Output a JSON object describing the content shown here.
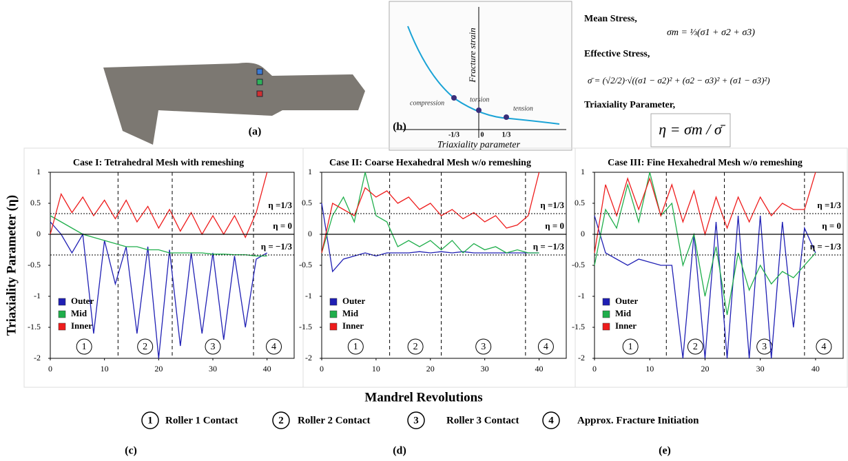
{
  "panel_labels": [
    "(a)",
    "(b)",
    "(c)",
    "(d)",
    "(e)"
  ],
  "diagram_b": {
    "y_label": "Fracture strain",
    "x_label": "Triaxiality parameter",
    "points": [
      "compression",
      "torsion",
      "tension"
    ],
    "x_marks": [
      "-1/3",
      "0",
      "1/3"
    ]
  },
  "equations": {
    "mean_label": "Mean Stress,",
    "mean_formula": "σm = ⅓(σ1 + σ2 + σ3)",
    "effective_label": "Effective Stress,",
    "effective_formula": "σ̄ = (√2/2)·√((σ1 − σ2)² + (σ2 − σ3)² + (σ1 − σ3)²)",
    "triax_label": "Triaxiality  Parameter,",
    "triax_formula": "η = σm / σ̄"
  },
  "shared_xlabel": "Mandrel Revolutions",
  "key": [
    {
      "symbol": "1",
      "label": "Roller 1 Contact"
    },
    {
      "symbol": "2",
      "label": "Roller 2 Contact"
    },
    {
      "symbol": "3",
      "label": "Roller 3 Contact"
    },
    {
      "symbol": "4",
      "label": "Approx. Fracture Initiation"
    }
  ],
  "chart_data": [
    {
      "type": "line",
      "title": "Case I: Tetrahedral  Mesh with remeshing",
      "ylabel": "Triaxiality Parameter (η)",
      "x": [
        0,
        2,
        4,
        6,
        8,
        10,
        12,
        14,
        16,
        18,
        20,
        22,
        24,
        26,
        28,
        30,
        32,
        34,
        36,
        38,
        40
      ],
      "series": [
        {
          "name": "Outer",
          "color": "#1f1fb4",
          "values": [
            0.2,
            0,
            -0.3,
            0,
            -1.6,
            -0.1,
            -0.8,
            -0.2,
            -1.6,
            -0.2,
            -2,
            -0.25,
            -1.8,
            -0.3,
            -1.6,
            -0.3,
            -1.7,
            -0.35,
            -1.5,
            -0.4,
            -0.3
          ]
        },
        {
          "name": "Mid",
          "color": "#1fae4b",
          "values": [
            0.3,
            0.2,
            0.1,
            0,
            -0.05,
            -0.1,
            -0.15,
            -0.2,
            -0.2,
            -0.25,
            -0.25,
            -0.3,
            -0.3,
            -0.3,
            -0.3,
            -0.32,
            -0.32,
            -0.33,
            -0.33,
            -0.35,
            -0.35
          ]
        },
        {
          "name": "Inner",
          "color": "#ee1c1c",
          "values": [
            0,
            0.65,
            0.35,
            0.6,
            0.3,
            0.55,
            0.25,
            0.55,
            0.2,
            0.45,
            0.1,
            0.4,
            0.05,
            0.35,
            0,
            0.3,
            0,
            0.3,
            -0.05,
            0.35,
            1
          ]
        }
      ],
      "ref_lines": [
        {
          "value": 0.333,
          "label": "η =1/3",
          "style": "dotted"
        },
        {
          "value": 0,
          "label": "η = 0",
          "style": "solid"
        },
        {
          "value": -0.333,
          "label": "η = −1/3",
          "style": "dotted"
        }
      ],
      "stage_lines": [
        12.5,
        22.5,
        37.5
      ],
      "stage_labels": [
        "1",
        "2",
        "3",
        "4"
      ],
      "xlim": [
        0,
        45
      ],
      "xticks": [
        0,
        10,
        20,
        30,
        40
      ],
      "ylim": [
        -2,
        1
      ],
      "yticks": [
        -2,
        -1.5,
        -1,
        -0.5,
        0,
        0.5,
        1
      ]
    },
    {
      "type": "line",
      "title": "Case II: Coarse Hexahedral Mesh w/o remeshing",
      "x": [
        0,
        2,
        4,
        6,
        8,
        10,
        12,
        14,
        16,
        18,
        20,
        22,
        24,
        26,
        28,
        30,
        32,
        34,
        36,
        38,
        40
      ],
      "series": [
        {
          "name": "Outer",
          "color": "#1f1fb4",
          "values": [
            0.5,
            -0.6,
            -0.4,
            -0.35,
            -0.3,
            -0.35,
            -0.3,
            -0.3,
            -0.3,
            -0.28,
            -0.3,
            -0.28,
            -0.3,
            -0.28,
            -0.3,
            -0.3,
            -0.3,
            -0.3,
            -0.3,
            -0.3,
            -0.3
          ]
        },
        {
          "name": "Mid",
          "color": "#1fae4b",
          "values": [
            -0.3,
            0.3,
            0.6,
            0.2,
            1,
            0.3,
            0.2,
            -0.2,
            -0.1,
            -0.2,
            -0.1,
            -0.25,
            -0.1,
            -0.3,
            -0.15,
            -0.25,
            -0.2,
            -0.3,
            -0.25,
            -0.3,
            -0.3
          ]
        },
        {
          "name": "Inner",
          "color": "#ee1c1c",
          "values": [
            -0.3,
            0.5,
            0.4,
            0.3,
            0.75,
            0.6,
            0.7,
            0.5,
            0.6,
            0.4,
            0.5,
            0.3,
            0.4,
            0.25,
            0.35,
            0.2,
            0.3,
            0.1,
            0.15,
            0.3,
            1
          ]
        }
      ],
      "ref_lines": [
        {
          "value": 0.333,
          "label": "η =1/3",
          "style": "dotted"
        },
        {
          "value": 0,
          "label": "η = 0",
          "style": "solid"
        },
        {
          "value": -0.333,
          "label": "η = −1/3",
          "style": "dotted"
        }
      ],
      "stage_lines": [
        12.5,
        22,
        37.5
      ],
      "stage_labels": [
        "1",
        "2",
        "3",
        "4"
      ],
      "xlim": [
        0,
        45
      ],
      "xticks": [
        0,
        10,
        20,
        30,
        40
      ],
      "ylim": [
        -2,
        1
      ],
      "yticks": [
        -2,
        -1.5,
        -1,
        -0.5,
        0,
        0.5,
        1
      ]
    },
    {
      "type": "line",
      "title": "Case III:  Fine Hexahedral Mesh w/o remeshing",
      "x": [
        0,
        2,
        4,
        6,
        8,
        10,
        12,
        14,
        16,
        18,
        20,
        22,
        24,
        26,
        28,
        30,
        32,
        34,
        36,
        38,
        40
      ],
      "series": [
        {
          "name": "Outer",
          "color": "#1f1fb4",
          "values": [
            0.3,
            -0.3,
            -0.4,
            -0.5,
            -0.4,
            -0.45,
            -0.5,
            -0.5,
            -2,
            0,
            -2,
            0.2,
            -2,
            0.3,
            -2,
            0.3,
            -2,
            0.2,
            -1.5,
            0.1,
            -0.3
          ]
        },
        {
          "name": "Mid",
          "color": "#1fae4b",
          "values": [
            -0.5,
            0.4,
            0.1,
            0.8,
            0.2,
            1,
            0.3,
            0.5,
            -0.5,
            0,
            -1,
            -0.2,
            -1.3,
            -0.3,
            -0.9,
            -0.5,
            -0.8,
            -0.6,
            -0.7,
            -0.5,
            -0.3
          ]
        },
        {
          "name": "Inner",
          "color": "#ee1c1c",
          "values": [
            -0.3,
            0.8,
            0.3,
            0.9,
            0.4,
            0.9,
            0.3,
            0.8,
            0.2,
            0.7,
            0,
            0.6,
            0.1,
            0.6,
            0.2,
            0.6,
            0.3,
            0.5,
            0.4,
            0.4,
            1
          ]
        }
      ],
      "ref_lines": [
        {
          "value": 0.333,
          "label": "η =1/3",
          "style": "dotted"
        },
        {
          "value": 0,
          "label": "η = 0",
          "style": "solid"
        },
        {
          "value": -0.333,
          "label": "η = −1/3",
          "style": "dotted"
        }
      ],
      "stage_lines": [
        13,
        23.5,
        38
      ],
      "stage_labels": [
        "1",
        "2",
        "3",
        "4"
      ],
      "xlim": [
        0,
        45
      ],
      "xticks": [
        0,
        10,
        20,
        30,
        40
      ],
      "ylim": [
        -2,
        1
      ],
      "yticks": [
        -2,
        -1.5,
        -1,
        -0.5,
        0,
        0.5,
        1
      ]
    }
  ]
}
